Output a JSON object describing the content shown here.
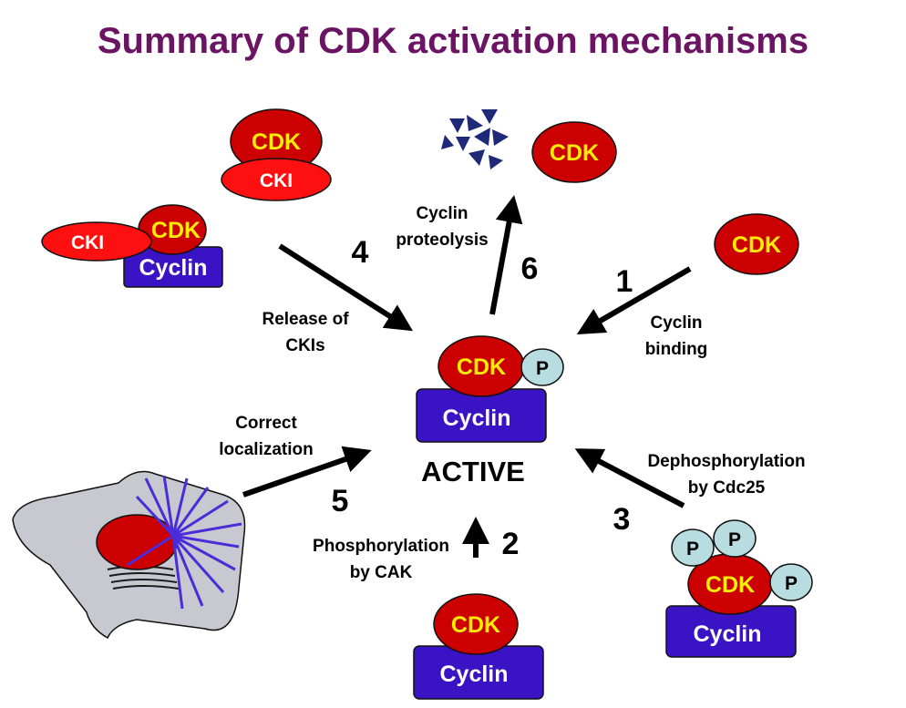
{
  "title": "Summary of CDK activation mechanisms",
  "labels": {
    "cdk": "CDK",
    "cyclin": "Cyclin",
    "cki": "CKI",
    "p": "P",
    "active": "ACTIVE"
  },
  "steps": {
    "s1": {
      "num": "1",
      "line1": "Cyclin",
      "line2": "binding"
    },
    "s2": {
      "num": "2",
      "line1": "Phosphorylation",
      "line2": "by CAK"
    },
    "s3": {
      "num": "3",
      "line1": "Dephosphorylation",
      "line2": "by Cdc25"
    },
    "s4": {
      "num": "4",
      "line1": "Release of",
      "line2": "CKIs"
    },
    "s5": {
      "num": "5",
      "line1": "Correct",
      "line2": "localization"
    },
    "s6": {
      "num": "6",
      "line1": "Cyclin",
      "line2": "proteolysis"
    }
  },
  "colors": {
    "title": "#6b1464",
    "cdk_fill": "#cc0000",
    "cdk_text": "#ffee00",
    "cyclin_fill": "#3a14c4",
    "cki_fill": "#ff1010",
    "phosphate_fill": "#b8dde0",
    "cell_fill": "#c8c8d0",
    "spindle": "#4a2cd8",
    "fragment": "#1e2a78"
  }
}
